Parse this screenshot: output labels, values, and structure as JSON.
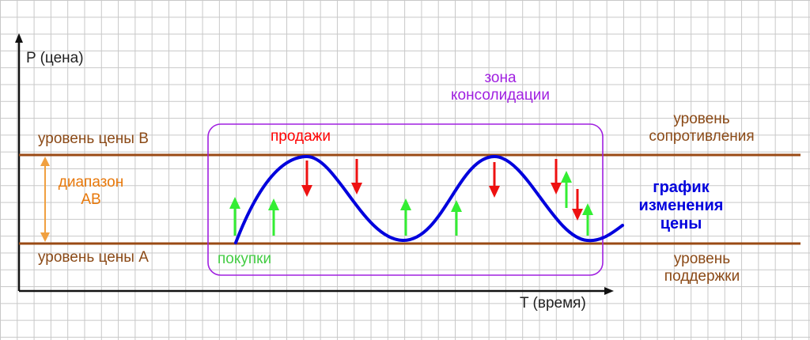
{
  "axes": {
    "y_label": "P (цена)",
    "x_label": "T (время)"
  },
  "levels": {
    "price_b": "уровень цены B",
    "price_a": "уровень цены A",
    "resistance_line1": "уровень",
    "resistance_line2": "сопротивления",
    "support_line1": "уровень",
    "support_line2": "поддержки"
  },
  "range": {
    "line1": "диапазон",
    "line2": "AB"
  },
  "zone": {
    "line1": "зона",
    "line2": "консолидации"
  },
  "signals": {
    "sells": "продажи",
    "buys": "покупки"
  },
  "price_chart": {
    "line1": "график",
    "line2": "изменения",
    "line3": "цены"
  },
  "colors": {
    "level_lines": "#9a4a14",
    "range_arrow": "#f0a040",
    "zone_border": "#a020e0",
    "price_curve": "#0000dd",
    "buy_arrows": "#33ee33",
    "sell_arrows": "#ee1111"
  }
}
